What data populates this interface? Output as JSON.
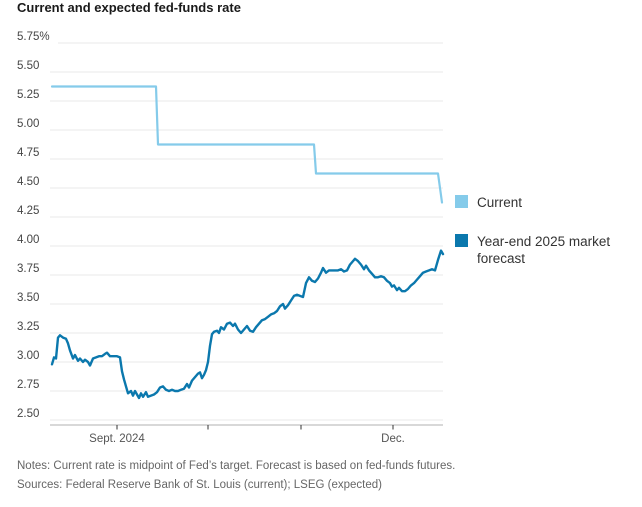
{
  "title": "Current and expected fed-funds rate",
  "legend": {
    "items": [
      {
        "label": "Current",
        "color": "#85cbea"
      },
      {
        "label": "Year-end 2025 market forecast",
        "color": "#0b78ad"
      }
    ]
  },
  "notes": {
    "line1": "Notes: Current rate is midpoint of Fed’s target. Forecast is based on fed-funds futures.",
    "line2": "Sources: Federal Reserve Bank of St. Louis (current); LSEG (expected)"
  },
  "chart_data": {
    "type": "line",
    "title": "Current and expected fed-funds rate",
    "grid": "horizontal",
    "legend_position": "right",
    "y_axis": {
      "unit": "%",
      "min": 2.5,
      "max": 5.75,
      "tick_step": 0.25,
      "tick_labels": [
        "5.75%",
        "5.50",
        "5.25",
        "5.00",
        "4.75",
        "4.50",
        "4.25",
        "4.00",
        "3.75",
        "3.50",
        "3.25",
        "3.00",
        "2.75",
        "2.50"
      ]
    },
    "x_axis": {
      "type": "time",
      "note": "x values are pixel positions; ticks mark month starts Sept–Dec 2024",
      "ticks": [
        {
          "label": "Sept. 2024",
          "x": 117
        },
        {
          "label": "",
          "x": 208
        },
        {
          "label": "",
          "x": 301
        },
        {
          "label": "Dec.",
          "x": 393
        }
      ]
    },
    "series": [
      {
        "name": "Current",
        "color": "#85cbea",
        "width": 2.2,
        "points": [
          [
            52,
            5.375
          ],
          [
            156,
            5.375
          ],
          [
            158,
            4.875
          ],
          [
            314,
            4.875
          ],
          [
            316,
            4.625
          ],
          [
            438,
            4.625
          ],
          [
            442,
            4.375
          ]
        ]
      },
      {
        "name": "Year-end 2025 market forecast",
        "color": "#0b78ad",
        "width": 2.4,
        "points": [
          [
            52,
            2.98
          ],
          [
            54,
            3.04
          ],
          [
            56,
            3.03
          ],
          [
            58,
            3.21
          ],
          [
            60,
            3.23
          ],
          [
            63,
            3.21
          ],
          [
            66,
            3.2
          ],
          [
            68,
            3.16
          ],
          [
            70,
            3.1
          ],
          [
            73,
            3.03
          ],
          [
            75,
            3.06
          ],
          [
            78,
            3.01
          ],
          [
            80,
            3.03
          ],
          [
            83,
            3.0
          ],
          [
            85,
            3.02
          ],
          [
            88,
            3.0
          ],
          [
            90,
            2.97
          ],
          [
            93,
            3.03
          ],
          [
            96,
            3.04
          ],
          [
            99,
            3.05
          ],
          [
            102,
            3.05
          ],
          [
            105,
            3.07
          ],
          [
            107,
            3.08
          ],
          [
            110,
            3.05
          ],
          [
            113,
            3.05
          ],
          [
            117,
            3.05
          ],
          [
            120,
            3.04
          ],
          [
            122,
            2.92
          ],
          [
            124,
            2.85
          ],
          [
            126,
            2.79
          ],
          [
            128,
            2.73
          ],
          [
            131,
            2.75
          ],
          [
            133,
            2.71
          ],
          [
            135,
            2.75
          ],
          [
            137,
            2.72
          ],
          [
            139,
            2.69
          ],
          [
            141,
            2.73
          ],
          [
            143,
            2.7
          ],
          [
            146,
            2.74
          ],
          [
            148,
            2.7
          ],
          [
            151,
            2.71
          ],
          [
            154,
            2.72
          ],
          [
            157,
            2.74
          ],
          [
            160,
            2.78
          ],
          [
            163,
            2.79
          ],
          [
            166,
            2.76
          ],
          [
            169,
            2.75
          ],
          [
            172,
            2.76
          ],
          [
            175,
            2.75
          ],
          [
            178,
            2.75
          ],
          [
            181,
            2.76
          ],
          [
            184,
            2.77
          ],
          [
            187,
            2.81
          ],
          [
            189,
            2.78
          ],
          [
            192,
            2.84
          ],
          [
            195,
            2.87
          ],
          [
            198,
            2.9
          ],
          [
            200,
            2.91
          ],
          [
            202,
            2.86
          ],
          [
            204,
            2.89
          ],
          [
            206,
            2.93
          ],
          [
            208,
            3.0
          ],
          [
            210,
            3.14
          ],
          [
            212,
            3.24
          ],
          [
            214,
            3.26
          ],
          [
            217,
            3.27
          ],
          [
            219,
            3.25
          ],
          [
            221,
            3.3
          ],
          [
            224,
            3.28
          ],
          [
            227,
            3.33
          ],
          [
            230,
            3.34
          ],
          [
            233,
            3.31
          ],
          [
            235,
            3.33
          ],
          [
            238,
            3.28
          ],
          [
            241,
            3.25
          ],
          [
            244,
            3.28
          ],
          [
            247,
            3.31
          ],
          [
            250,
            3.27
          ],
          [
            253,
            3.26
          ],
          [
            256,
            3.3
          ],
          [
            259,
            3.33
          ],
          [
            262,
            3.36
          ],
          [
            265,
            3.37
          ],
          [
            268,
            3.39
          ],
          [
            271,
            3.41
          ],
          [
            274,
            3.42
          ],
          [
            277,
            3.44
          ],
          [
            280,
            3.48
          ],
          [
            283,
            3.5
          ],
          [
            285,
            3.46
          ],
          [
            288,
            3.49
          ],
          [
            291,
            3.53
          ],
          [
            294,
            3.57
          ],
          [
            297,
            3.58
          ],
          [
            300,
            3.57
          ],
          [
            303,
            3.56
          ],
          [
            306,
            3.68
          ],
          [
            309,
            3.73
          ],
          [
            312,
            3.7
          ],
          [
            315,
            3.69
          ],
          [
            318,
            3.72
          ],
          [
            321,
            3.77
          ],
          [
            323,
            3.81
          ],
          [
            326,
            3.77
          ],
          [
            329,
            3.79
          ],
          [
            332,
            3.79
          ],
          [
            335,
            3.79
          ],
          [
            338,
            3.79
          ],
          [
            341,
            3.8
          ],
          [
            344,
            3.78
          ],
          [
            347,
            3.79
          ],
          [
            350,
            3.84
          ],
          [
            353,
            3.87
          ],
          [
            355,
            3.89
          ],
          [
            358,
            3.87
          ],
          [
            361,
            3.84
          ],
          [
            364,
            3.8
          ],
          [
            366,
            3.83
          ],
          [
            369,
            3.79
          ],
          [
            372,
            3.76
          ],
          [
            375,
            3.73
          ],
          [
            378,
            3.73
          ],
          [
            381,
            3.74
          ],
          [
            384,
            3.73
          ],
          [
            387,
            3.7
          ],
          [
            390,
            3.68
          ],
          [
            392,
            3.65
          ],
          [
            394,
            3.66
          ],
          [
            397,
            3.62
          ],
          [
            399,
            3.64
          ],
          [
            402,
            3.61
          ],
          [
            405,
            3.61
          ],
          [
            408,
            3.63
          ],
          [
            411,
            3.66
          ],
          [
            414,
            3.68
          ],
          [
            417,
            3.71
          ],
          [
            420,
            3.74
          ],
          [
            423,
            3.77
          ],
          [
            426,
            3.78
          ],
          [
            429,
            3.79
          ],
          [
            432,
            3.8
          ],
          [
            435,
            3.79
          ],
          [
            438,
            3.88
          ],
          [
            441,
            3.96
          ],
          [
            443,
            3.93
          ]
        ]
      }
    ]
  }
}
